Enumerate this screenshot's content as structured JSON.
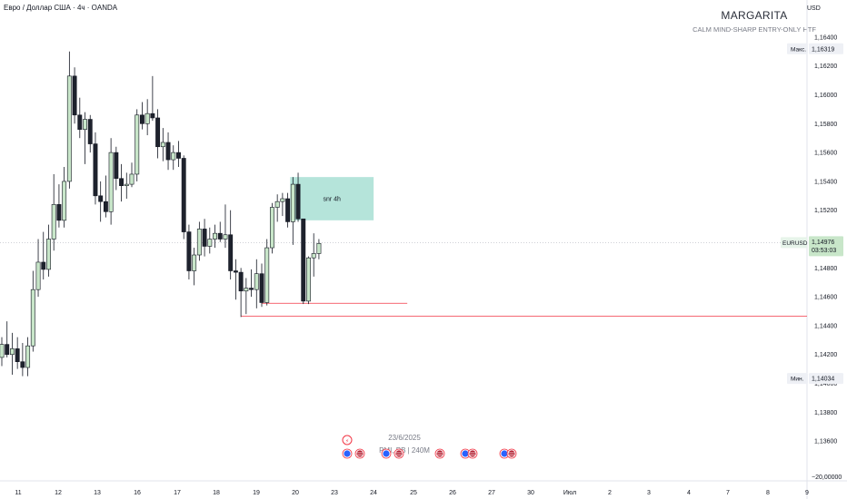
{
  "header": {
    "symbol_title": "Евро / Доллар США · 4ч · OANDA",
    "currency": "USD"
  },
  "watermark": {
    "title": "MARGARITA",
    "subtitle": "CALM MIND-SHARP ENTRY-ONLY HTF"
  },
  "colors": {
    "bull_fill": "#c8e6c9",
    "bear_fill": "#1e222d",
    "zone": "#a8dfd4",
    "level_line": "#f23645",
    "grid": "#e0e3eb"
  },
  "chart_data": {
    "type": "candlestick",
    "title": "",
    "symbol": "EURUSD",
    "timeframe": "4ч",
    "ylim": [
      1.1345,
      1.165
    ],
    "y_ticks": [
      "1,16400",
      "1,16200",
      "1,16000",
      "1,15800",
      "1,15600",
      "1,15400",
      "1,15200",
      "1,15000",
      "1,14800",
      "1,14600",
      "1,14400",
      "1,14200",
      "1,14000",
      "1,13800",
      "1,13600"
    ],
    "y_tick_values": [
      1.164,
      1.162,
      1.16,
      1.158,
      1.156,
      1.154,
      1.152,
      1.15,
      1.148,
      1.146,
      1.144,
      1.142,
      1.14,
      1.138,
      1.136
    ],
    "y_bottom_label": "−20,00000",
    "x_ticks": [
      "11",
      "12",
      "13",
      "16",
      "17",
      "18",
      "19",
      "20",
      "23",
      "24",
      "25",
      "26",
      "27",
      "30",
      "Июл",
      "2",
      "3",
      "4",
      "7",
      "8",
      "9"
    ],
    "last_price": "1,14976",
    "last_price_countdown": "03:53:03",
    "last_price_value": 1.14976,
    "max_label": "Макс.",
    "max_value": "1,16319",
    "max_price": 1.16319,
    "min_label": "Мин.",
    "min_value": "1,14034",
    "min_price": 1.14034,
    "candles": [
      {
        "o": 1.1418,
        "h": 1.1432,
        "l": 1.1412,
        "c": 1.1427
      },
      {
        "o": 1.1427,
        "h": 1.1443,
        "l": 1.1418,
        "c": 1.142
      },
      {
        "o": 1.142,
        "h": 1.1435,
        "l": 1.1406,
        "c": 1.1424
      },
      {
        "o": 1.1424,
        "h": 1.1432,
        "l": 1.141,
        "c": 1.1415
      },
      {
        "o": 1.1415,
        "h": 1.1428,
        "l": 1.1405,
        "c": 1.1411
      },
      {
        "o": 1.1411,
        "h": 1.1432,
        "l": 1.1405,
        "c": 1.1426
      },
      {
        "o": 1.1426,
        "h": 1.1478,
        "l": 1.1422,
        "c": 1.1465
      },
      {
        "o": 1.1465,
        "h": 1.15,
        "l": 1.146,
        "c": 1.1484
      },
      {
        "o": 1.1484,
        "h": 1.1505,
        "l": 1.1472,
        "c": 1.1479
      },
      {
        "o": 1.1479,
        "h": 1.151,
        "l": 1.1474,
        "c": 1.15
      },
      {
        "o": 1.15,
        "h": 1.1545,
        "l": 1.1492,
        "c": 1.1524
      },
      {
        "o": 1.1524,
        "h": 1.1538,
        "l": 1.1508,
        "c": 1.1513
      },
      {
        "o": 1.1513,
        "h": 1.155,
        "l": 1.1508,
        "c": 1.154
      },
      {
        "o": 1.154,
        "h": 1.163,
        "l": 1.1535,
        "c": 1.1613
      },
      {
        "o": 1.1613,
        "h": 1.1619,
        "l": 1.158,
        "c": 1.1586
      },
      {
        "o": 1.1586,
        "h": 1.1598,
        "l": 1.157,
        "c": 1.1576
      },
      {
        "o": 1.1576,
        "h": 1.1588,
        "l": 1.1552,
        "c": 1.1583
      },
      {
        "o": 1.1583,
        "h": 1.1586,
        "l": 1.156,
        "c": 1.1566
      },
      {
        "o": 1.1566,
        "h": 1.1574,
        "l": 1.1524,
        "c": 1.153
      },
      {
        "o": 1.153,
        "h": 1.154,
        "l": 1.1512,
        "c": 1.1526
      },
      {
        "o": 1.1526,
        "h": 1.1544,
        "l": 1.1515,
        "c": 1.1519
      },
      {
        "o": 1.1519,
        "h": 1.157,
        "l": 1.151,
        "c": 1.156
      },
      {
        "o": 1.156,
        "h": 1.1564,
        "l": 1.1534,
        "c": 1.1542
      },
      {
        "o": 1.1542,
        "h": 1.1552,
        "l": 1.1526,
        "c": 1.1537
      },
      {
        "o": 1.1537,
        "h": 1.1546,
        "l": 1.1528,
        "c": 1.1538
      },
      {
        "o": 1.1538,
        "h": 1.1553,
        "l": 1.1536,
        "c": 1.1545
      },
      {
        "o": 1.1545,
        "h": 1.159,
        "l": 1.154,
        "c": 1.1586
      },
      {
        "o": 1.1586,
        "h": 1.1595,
        "l": 1.1576,
        "c": 1.158
      },
      {
        "o": 1.158,
        "h": 1.1597,
        "l": 1.1572,
        "c": 1.1587
      },
      {
        "o": 1.1587,
        "h": 1.1613,
        "l": 1.1582,
        "c": 1.1584
      },
      {
        "o": 1.1584,
        "h": 1.159,
        "l": 1.1556,
        "c": 1.1564
      },
      {
        "o": 1.1564,
        "h": 1.1577,
        "l": 1.1554,
        "c": 1.1567
      },
      {
        "o": 1.1567,
        "h": 1.1574,
        "l": 1.1548,
        "c": 1.1555
      },
      {
        "o": 1.1555,
        "h": 1.1565,
        "l": 1.1548,
        "c": 1.156
      },
      {
        "o": 1.156,
        "h": 1.1568,
        "l": 1.155,
        "c": 1.1556
      },
      {
        "o": 1.1556,
        "h": 1.1558,
        "l": 1.15,
        "c": 1.1505
      },
      {
        "o": 1.1505,
        "h": 1.151,
        "l": 1.1472,
        "c": 1.1478
      },
      {
        "o": 1.1478,
        "h": 1.1494,
        "l": 1.1468,
        "c": 1.1489
      },
      {
        "o": 1.1489,
        "h": 1.1512,
        "l": 1.1485,
        "c": 1.1507
      },
      {
        "o": 1.1507,
        "h": 1.1514,
        "l": 1.1488,
        "c": 1.1495
      },
      {
        "o": 1.1495,
        "h": 1.1508,
        "l": 1.149,
        "c": 1.15
      },
      {
        "o": 1.15,
        "h": 1.151,
        "l": 1.1494,
        "c": 1.1504
      },
      {
        "o": 1.1504,
        "h": 1.1512,
        "l": 1.1498,
        "c": 1.15
      },
      {
        "o": 1.15,
        "h": 1.1524,
        "l": 1.1494,
        "c": 1.1503
      },
      {
        "o": 1.1503,
        "h": 1.152,
        "l": 1.1472,
        "c": 1.1478
      },
      {
        "o": 1.1478,
        "h": 1.1486,
        "l": 1.1458,
        "c": 1.1477
      },
      {
        "o": 1.1477,
        "h": 1.148,
        "l": 1.1446,
        "c": 1.1464
      },
      {
        "o": 1.1464,
        "h": 1.1473,
        "l": 1.1448,
        "c": 1.1466
      },
      {
        "o": 1.1466,
        "h": 1.1479,
        "l": 1.146,
        "c": 1.1465
      },
      {
        "o": 1.1465,
        "h": 1.1486,
        "l": 1.1452,
        "c": 1.1476
      },
      {
        "o": 1.1476,
        "h": 1.1483,
        "l": 1.1453,
        "c": 1.1456
      },
      {
        "o": 1.1456,
        "h": 1.15,
        "l": 1.1454,
        "c": 1.1494
      },
      {
        "o": 1.1494,
        "h": 1.1525,
        "l": 1.149,
        "c": 1.1522
      },
      {
        "o": 1.1522,
        "h": 1.1531,
        "l": 1.1512,
        "c": 1.1526
      },
      {
        "o": 1.1526,
        "h": 1.1532,
        "l": 1.1516,
        "c": 1.1528
      },
      {
        "o": 1.1528,
        "h": 1.1532,
        "l": 1.1508,
        "c": 1.1512
      },
      {
        "o": 1.1512,
        "h": 1.1543,
        "l": 1.1496,
        "c": 1.1538
      },
      {
        "o": 1.1538,
        "h": 1.1546,
        "l": 1.1512,
        "c": 1.1514
      },
      {
        "o": 1.1514,
        "h": 1.1514,
        "l": 1.1455,
        "c": 1.1457
      },
      {
        "o": 1.1457,
        "h": 1.1488,
        "l": 1.1455,
        "c": 1.1487
      },
      {
        "o": 1.1487,
        "h": 1.1504,
        "l": 1.1474,
        "c": 1.149
      },
      {
        "o": 1.149,
        "h": 1.15,
        "l": 1.1486,
        "c": 1.1497
      }
    ],
    "zone": {
      "label": "snr 4h",
      "from_candle": 56,
      "to_candle": 71,
      "top": 1.1543,
      "bottom": 1.1513
    },
    "lines": [
      {
        "price": 1.14555,
        "from_candle": 50,
        "to_candle": 78
      },
      {
        "price": 1.14465,
        "from_candle": 46,
        "to_candle": 999
      }
    ],
    "event_date": "23/6/2025",
    "event_text": "PMI, PB | 240M"
  }
}
